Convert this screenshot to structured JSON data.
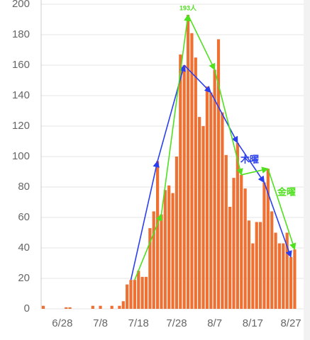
{
  "chart_data": {
    "type": "bar",
    "annotation": "193人",
    "categories": [
      null,
      null,
      null,
      null,
      null,
      "6/28",
      null,
      null,
      null,
      null,
      null,
      null,
      null,
      null,
      null,
      "7/8",
      null,
      null,
      null,
      null,
      null,
      null,
      null,
      null,
      null,
      "7/18",
      null,
      null,
      null,
      null,
      null,
      null,
      null,
      null,
      null,
      "7/28",
      null,
      null,
      null,
      null,
      null,
      null,
      null,
      null,
      null,
      "8/7",
      null,
      null,
      null,
      null,
      null,
      null,
      null,
      null,
      null,
      "8/17",
      null,
      null,
      null,
      null,
      null,
      null,
      null,
      null,
      null,
      "8/27",
      null
    ],
    "series": [
      {
        "type": "bar",
        "color": "#ee7032",
        "values": [
          2,
          0,
          0,
          0,
          0,
          0,
          1,
          1,
          0,
          0,
          0,
          0,
          0,
          2,
          0,
          2,
          0,
          0,
          2,
          0,
          2,
          5,
          16,
          19,
          19,
          25,
          21,
          21,
          53,
          64,
          97,
          62,
          78,
          81,
          76,
          100,
          167,
          160,
          193,
          181,
          165,
          126,
          120,
          146,
          142,
          157,
          177,
          129,
          101,
          67,
          86,
          109,
          88,
          79,
          58,
          43,
          57,
          57,
          83,
          92,
          64,
          50,
          43,
          43,
          50,
          34,
          39
        ]
      },
      {
        "type": "line",
        "name": "木曜",
        "color": "#2a3ff0",
        "values": [
          null,
          null,
          null,
          null,
          null,
          null,
          null,
          null,
          null,
          null,
          null,
          null,
          null,
          null,
          null,
          null,
          null,
          null,
          null,
          null,
          null,
          null,
          null,
          19,
          null,
          null,
          null,
          null,
          null,
          null,
          97,
          null,
          null,
          null,
          null,
          null,
          null,
          160,
          null,
          null,
          null,
          null,
          null,
          null,
          142,
          null,
          null,
          null,
          null,
          null,
          null,
          109,
          null,
          null,
          null,
          null,
          null,
          null,
          83,
          null,
          null,
          null,
          null,
          null,
          null,
          34,
          null
        ]
      },
      {
        "type": "line",
        "name": "金曜",
        "color": "#4fe01e",
        "values": [
          null,
          null,
          null,
          null,
          null,
          null,
          null,
          null,
          null,
          null,
          null,
          null,
          null,
          null,
          null,
          null,
          null,
          null,
          null,
          null,
          null,
          null,
          null,
          null,
          19,
          null,
          null,
          null,
          null,
          null,
          null,
          62,
          null,
          null,
          null,
          null,
          null,
          null,
          193,
          null,
          null,
          null,
          null,
          null,
          null,
          157,
          null,
          null,
          null,
          null,
          null,
          null,
          88,
          null,
          null,
          null,
          null,
          null,
          null,
          92,
          null,
          null,
          null,
          null,
          null,
          null,
          39
        ]
      }
    ],
    "ylim": [
      0,
      200
    ],
    "yticks": [
      0,
      20,
      40,
      60,
      80,
      100,
      120,
      140,
      160,
      180,
      200
    ],
    "grid": true
  }
}
